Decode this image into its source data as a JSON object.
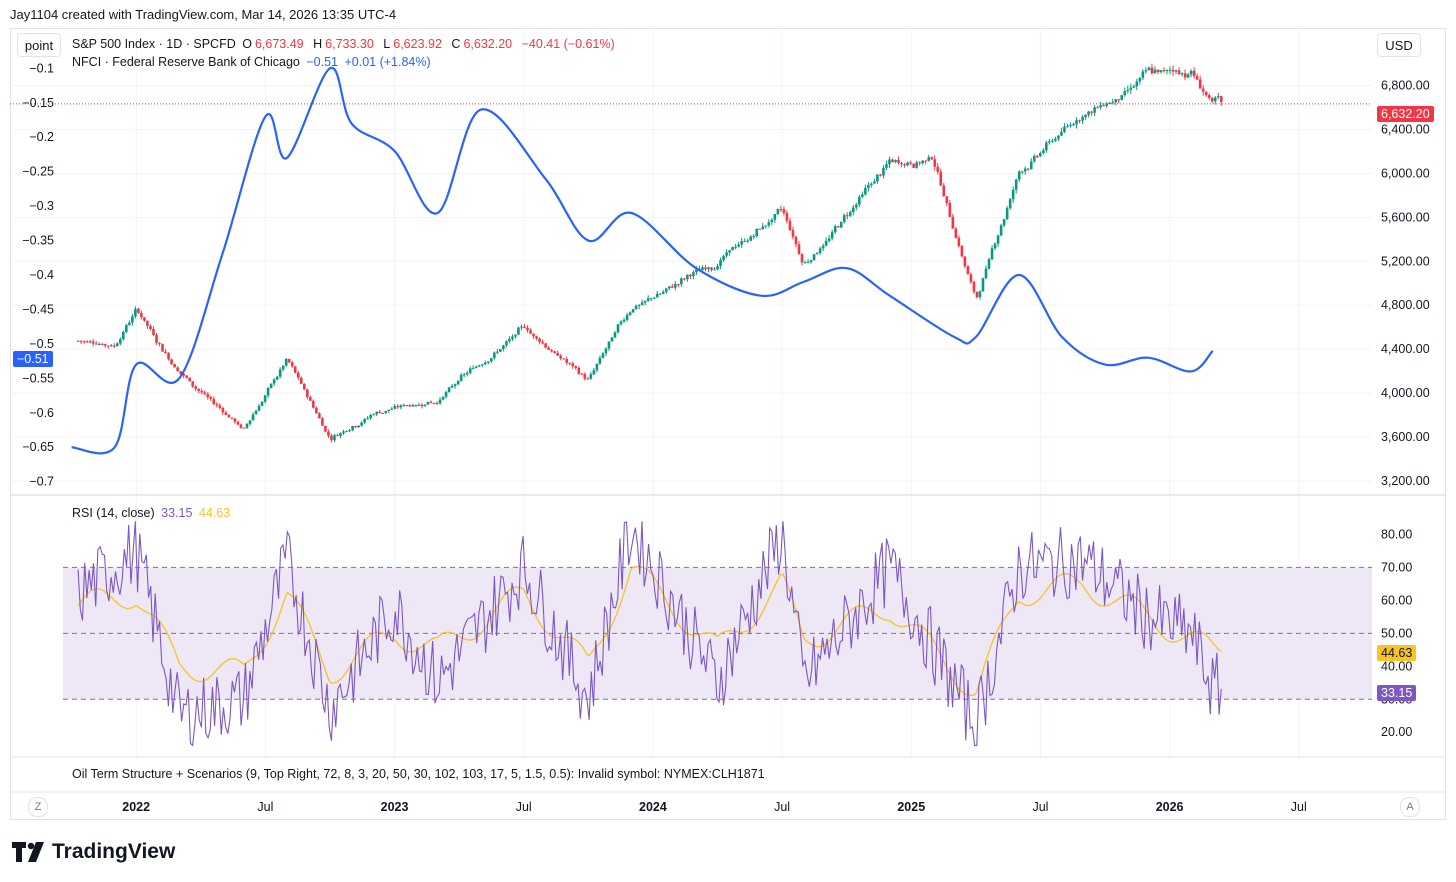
{
  "credit": "Jay1104 created with TradingView.com, Mar 14, 2026 13:35 UTC-4",
  "toolbar": {
    "point_label": "point",
    "currency_label": "USD",
    "z_label": "Z",
    "a_label": "A"
  },
  "brand": {
    "name": "TradingView"
  },
  "colors": {
    "candle_up": "#089981",
    "candle_down": "#f23645",
    "nfci": "#2962ff",
    "rsi": "#7e57c2",
    "rsi_ma": "#f7c325",
    "rsi_band": "#ede7f6",
    "price_line": "#f23645"
  },
  "legend": {
    "symbol": "S&P 500 Index · 1D · SPCFD",
    "o_label": "O",
    "o": "6,673.49",
    "h_label": "H",
    "h": "6,733.30",
    "l_label": "L",
    "l": "6,623.92",
    "c_label": "C",
    "c": "6,632.20",
    "change": "−40.41 (−0.61%)",
    "nfci_name": "NFCI · Federal Reserve Bank of Chicago",
    "nfci_value": "−0.51",
    "nfci_change": "+0.01 (+1.84%)",
    "rsi_name": "RSI (14, close)",
    "rsi_value": "33.15",
    "rsi_ma_value": "44.63",
    "oil_error": "Oil Term Structure + Scenarios (9, Top Right, 72, 8, 3, 20, 50, 30, 102, 103, 17, 5, 1.5, 0.5): Invalid symbol: NYMEX:CLH1871"
  },
  "tags": {
    "nfci_last": "−0.51",
    "price_last": "6,632.20",
    "rsi_ma_last": "44.63",
    "rsi_last": "33.15"
  },
  "chart_data": [
    {
      "type": "line",
      "name": "S&P 500 Index · 1D · SPCFD (candlesticks)",
      "x": [
        "2021-10",
        "2021-12",
        "2022-01",
        "2022-03",
        "2022-06",
        "2022-08",
        "2022-10",
        "2022-12",
        "2023-03",
        "2023-07",
        "2023-10",
        "2023-12",
        "2024-04",
        "2024-07",
        "2024-08",
        "2024-12",
        "2025-02",
        "2025-04",
        "2025-06",
        "2025-09",
        "2025-11",
        "2025-12",
        "2026-02",
        "2026-03"
      ],
      "y": [
        4480,
        4450,
        4780,
        4200,
        3670,
        4300,
        3590,
        3830,
        3950,
        4590,
        4120,
        4760,
        5200,
        5650,
        5150,
        6080,
        6150,
        4850,
        6000,
        6550,
        6700,
        6880,
        6920,
        6632
      ],
      "ylim": [
        3100,
        7050
      ],
      "yticks": [
        "3,200.00",
        "3,600.00",
        "4,000.00",
        "4,400.00",
        "4,800.00",
        "5,200.00",
        "5,600.00",
        "6,000.00",
        "6,400.00",
        "6,800.00"
      ],
      "last": "6,632.20"
    },
    {
      "type": "line",
      "name": "NFCI · Federal Reserve Bank of Chicago",
      "x": [
        "2021-10",
        "2021-12",
        "2022-01",
        "2022-03",
        "2022-05",
        "2022-07",
        "2022-08",
        "2022-10",
        "2022-11",
        "2023-01",
        "2023-03",
        "2023-05",
        "2023-08",
        "2023-10",
        "2023-12",
        "2024-03",
        "2024-06",
        "2024-08",
        "2024-10",
        "2024-12",
        "2025-03",
        "2025-04",
        "2025-06",
        "2025-08",
        "2025-10",
        "2025-12",
        "2026-02",
        "2026-03"
      ],
      "y": [
        -0.65,
        -0.65,
        -0.53,
        -0.55,
        -0.37,
        -0.17,
        -0.23,
        -0.1,
        -0.18,
        -0.22,
        -0.31,
        -0.16,
        -0.26,
        -0.35,
        -0.31,
        -0.39,
        -0.43,
        -0.41,
        -0.39,
        -0.43,
        -0.49,
        -0.49,
        -0.4,
        -0.49,
        -0.53,
        -0.52,
        -0.54,
        -0.51
      ],
      "ylim": [
        -0.715,
        -0.085
      ],
      "yticks": [
        "−0.7",
        "−0.65",
        "−0.6",
        "−0.55",
        "−0.5",
        "−0.45",
        "−0.4",
        "−0.35",
        "−0.3",
        "−0.25",
        "−0.2",
        "−0.15",
        "−0.1"
      ],
      "last": "−0.51"
    },
    {
      "type": "line",
      "name": "RSI (14, close)",
      "x": [
        "2021-10",
        "2022-01",
        "2022-03",
        "2022-06",
        "2022-08",
        "2022-10",
        "2023-01",
        "2023-03",
        "2023-07",
        "2023-10",
        "2023-12",
        "2024-04",
        "2024-07",
        "2024-08",
        "2024-12",
        "2025-04",
        "2025-06",
        "2025-09",
        "2025-12",
        "2026-02",
        "2026-03"
      ],
      "y": [
        60,
        75,
        25,
        30,
        72,
        27,
        58,
        35,
        70,
        30,
        82,
        35,
        80,
        35,
        70,
        22,
        70,
        72,
        55,
        50,
        33.15
      ],
      "ma_y": [
        58,
        62,
        40,
        38,
        62,
        38,
        50,
        45,
        62,
        40,
        70,
        45,
        65,
        48,
        58,
        32,
        62,
        65,
        55,
        48,
        44.63
      ],
      "ylim": [
        14,
        85
      ],
      "yticks": [
        "20.00",
        "30.00",
        "40.00",
        "50.00",
        "60.00",
        "70.00",
        "80.00"
      ],
      "band": [
        30,
        70
      ],
      "mid": 50,
      "last": "33.15",
      "ma_last": "44.63"
    }
  ],
  "time_axis": {
    "labels": [
      "2022",
      "Jul",
      "2023",
      "Jul",
      "2024",
      "Jul",
      "2025",
      "Jul",
      "2026",
      "Jul"
    ],
    "bold": [
      true,
      false,
      true,
      false,
      true,
      false,
      true,
      false,
      true,
      false
    ],
    "dates": [
      "2022-01",
      "2022-07",
      "2023-01",
      "2023-07",
      "2024-01",
      "2024-07",
      "2025-01",
      "2025-07",
      "2026-01",
      "2026-07"
    ]
  }
}
